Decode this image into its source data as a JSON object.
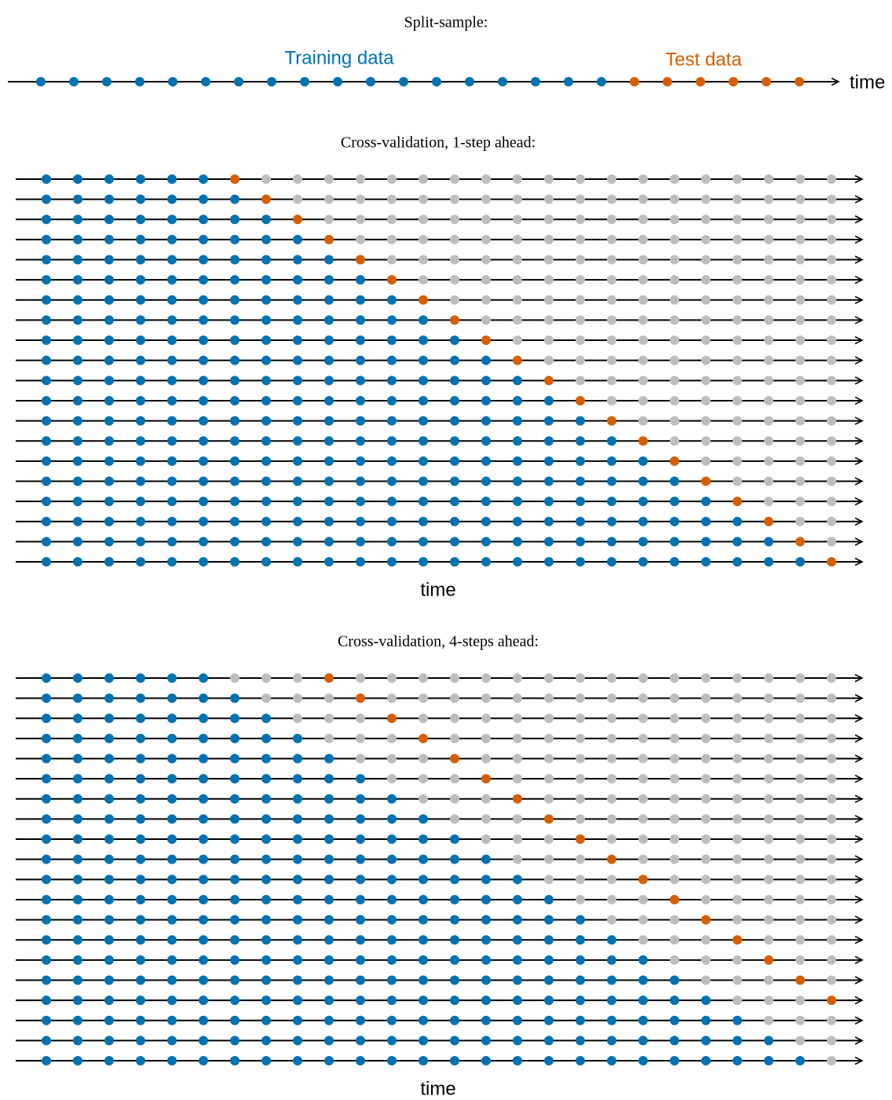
{
  "colors": {
    "training": "#0072b2",
    "test": "#d55e00",
    "unused": "#bdbdbd"
  },
  "split": {
    "title": "Split-sample:",
    "training_label": "Training data",
    "test_label": "Test data",
    "axis_label": "time",
    "training_points": 18,
    "test_points": 6
  },
  "cv_panels": [
    {
      "title": "Cross-validation, 1-step ahead:",
      "axis_label": "time",
      "points_per_row": 26,
      "rows": 20,
      "initial_training": 6,
      "steps_ahead": 1
    },
    {
      "title": "Cross-validation, 4-steps ahead:",
      "axis_label": "time",
      "points_per_row": 26,
      "rows": 20,
      "initial_training": 6,
      "steps_ahead": 4
    }
  ]
}
